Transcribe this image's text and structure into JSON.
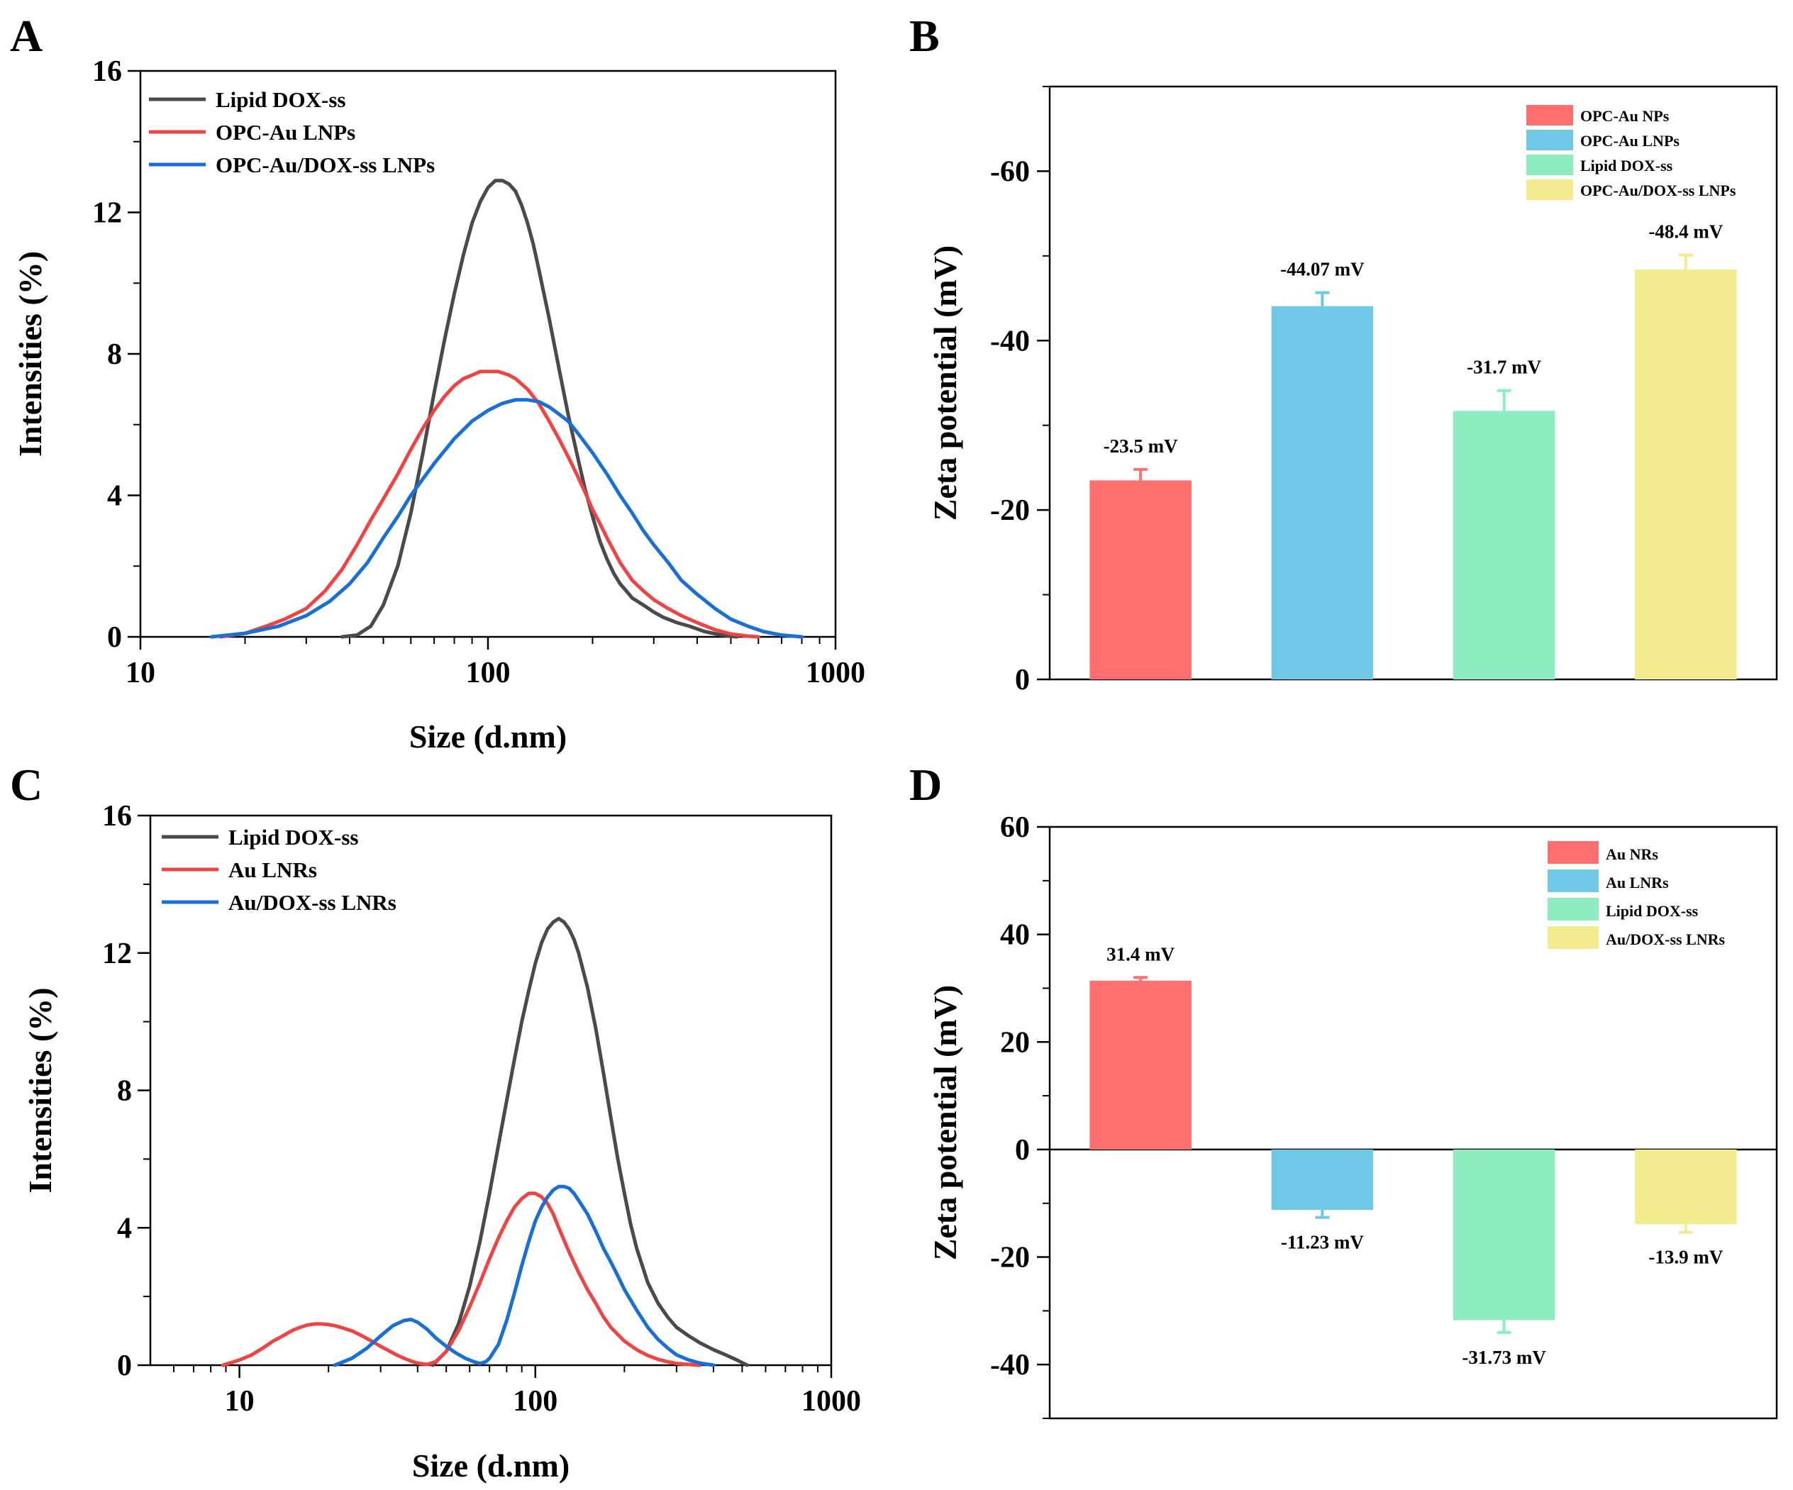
{
  "chart_data": [
    {
      "panel": "A",
      "type": "line",
      "xscale": "log",
      "xlabel": "Size (d.nm)",
      "ylabel": "Intensities (%)",
      "xlim": [
        10,
        1000
      ],
      "ylim": [
        0,
        16
      ],
      "xticks": [
        10,
        100,
        1000
      ],
      "xtick_labels": [
        "10",
        "100",
        "1000"
      ],
      "yticks": [
        0,
        4,
        8,
        12,
        16
      ],
      "ytick_labels": [
        "0",
        "4",
        "8",
        "12",
        "16"
      ],
      "legend_position": "top-left",
      "series": [
        {
          "name": "Lipid DOX-ss",
          "color": "#4a4a4a",
          "x": [
            38,
            42,
            46,
            50,
            55,
            60,
            65,
            70,
            75,
            80,
            85,
            90,
            95,
            100,
            105,
            110,
            115,
            120,
            125,
            130,
            135,
            140,
            150,
            160,
            170,
            180,
            190,
            200,
            210,
            220,
            230,
            240,
            250,
            260,
            280,
            300,
            320,
            350,
            380,
            420,
            470,
            520
          ],
          "y": [
            0,
            0.05,
            0.3,
            0.9,
            2.0,
            3.5,
            5.2,
            6.9,
            8.4,
            9.7,
            10.8,
            11.7,
            12.3,
            12.7,
            12.9,
            12.9,
            12.8,
            12.6,
            12.2,
            11.7,
            11.1,
            10.4,
            9.0,
            7.6,
            6.3,
            5.2,
            4.2,
            3.4,
            2.7,
            2.2,
            1.8,
            1.5,
            1.3,
            1.1,
            0.9,
            0.7,
            0.55,
            0.4,
            0.3,
            0.15,
            0.05,
            0
          ]
        },
        {
          "name": "OPC-Au LNPs",
          "color": "#ee4444",
          "x": [
            17,
            20,
            23,
            26,
            30,
            34,
            38,
            42,
            46,
            50,
            55,
            60,
            65,
            70,
            75,
            80,
            85,
            90,
            95,
            100,
            107,
            115,
            120,
            130,
            140,
            150,
            160,
            170,
            180,
            190,
            200,
            210,
            220,
            240,
            260,
            280,
            300,
            330,
            360,
            400,
            450,
            500,
            560,
            600
          ],
          "y": [
            0,
            0.1,
            0.3,
            0.5,
            0.8,
            1.3,
            1.9,
            2.6,
            3.3,
            3.9,
            4.6,
            5.3,
            5.9,
            6.4,
            6.8,
            7.1,
            7.3,
            7.4,
            7.5,
            7.5,
            7.5,
            7.4,
            7.3,
            7.0,
            6.6,
            6.1,
            5.6,
            5.1,
            4.6,
            4.1,
            3.6,
            3.2,
            2.8,
            2.1,
            1.6,
            1.3,
            1.05,
            0.8,
            0.6,
            0.4,
            0.2,
            0.08,
            0.02,
            0
          ]
        },
        {
          "name": "OPC-Au/DOX-ss LNPs",
          "color": "#1a6fd6",
          "x": [
            16,
            20,
            25,
            30,
            35,
            40,
            45,
            50,
            55,
            60,
            70,
            80,
            90,
            100,
            110,
            120,
            130,
            140,
            150,
            160,
            170,
            180,
            200,
            220,
            240,
            260,
            280,
            300,
            330,
            360,
            400,
            450,
            500,
            560,
            620,
            700,
            800
          ],
          "y": [
            0,
            0.1,
            0.3,
            0.6,
            1.0,
            1.5,
            2.1,
            2.8,
            3.4,
            4.0,
            4.9,
            5.6,
            6.1,
            6.4,
            6.6,
            6.7,
            6.7,
            6.65,
            6.5,
            6.3,
            6.1,
            5.8,
            5.2,
            4.6,
            4.0,
            3.5,
            3.0,
            2.6,
            2.1,
            1.6,
            1.2,
            0.8,
            0.5,
            0.3,
            0.15,
            0.05,
            0
          ]
        }
      ]
    },
    {
      "panel": "B",
      "type": "bar",
      "ylabel": "Zeta potential (mV)",
      "ylim": [
        0,
        -70
      ],
      "yticks": [
        0,
        -20,
        -40,
        -60
      ],
      "ytick_labels": [
        "0",
        "-20",
        "-40",
        "-60"
      ],
      "legend_position": "top-right",
      "categories": [
        "OPC-Au NPs",
        "OPC-Au LNPs",
        "Lipid DOX-ss",
        "OPC-Au/DOX-ss LNPs"
      ],
      "values": [
        -23.5,
        -44.07,
        -31.7,
        -48.4
      ],
      "errors": [
        1.3,
        1.6,
        2.4,
        1.7
      ],
      "colors": [
        "#ff6f6e",
        "#6ec8e6",
        "#8eecc1",
        "#f2ec8e"
      ],
      "value_labels": [
        "-23.5 mV",
        "-44.07 mV",
        "-31.7 mV",
        "-48.4 mV"
      ]
    },
    {
      "panel": "C",
      "type": "line",
      "xscale": "log",
      "xlabel": "Size (d.nm)",
      "ylabel": "Intensities (%)",
      "xlim": [
        5,
        1000
      ],
      "ylim": [
        0,
        16
      ],
      "xticks": [
        10,
        100,
        1000
      ],
      "xtick_labels": [
        "10",
        "100",
        "1000"
      ],
      "yticks": [
        0,
        4,
        8,
        12,
        16
      ],
      "ytick_labels": [
        "0",
        "4",
        "8",
        "12",
        "16"
      ],
      "legend_position": "top-left",
      "series": [
        {
          "name": "Lipid DOX-ss",
          "color": "#4a4a4a",
          "x": [
            45,
            50,
            55,
            60,
            65,
            70,
            75,
            80,
            85,
            90,
            95,
            100,
            105,
            110,
            115,
            120,
            125,
            130,
            135,
            140,
            150,
            160,
            170,
            180,
            190,
            200,
            210,
            220,
            240,
            260,
            280,
            300,
            330,
            360,
            400,
            440,
            480,
            520
          ],
          "y": [
            0,
            0.4,
            1.2,
            2.3,
            3.6,
            5.0,
            6.4,
            7.7,
            8.9,
            10.0,
            10.9,
            11.7,
            12.3,
            12.7,
            12.9,
            13.0,
            12.9,
            12.7,
            12.4,
            12.0,
            11.0,
            9.8,
            8.5,
            7.2,
            6.0,
            5.0,
            4.1,
            3.4,
            2.4,
            1.8,
            1.4,
            1.1,
            0.85,
            0.65,
            0.45,
            0.3,
            0.15,
            0
          ]
        },
        {
          "name": "Au LNRs",
          "color": "#ee4444",
          "x": [
            8.8,
            10,
            11,
            12,
            13,
            14,
            15,
            16,
            17,
            18,
            19,
            20,
            21,
            22,
            24,
            26,
            28,
            30,
            32,
            34,
            36,
            38,
            40,
            43,
            46,
            50,
            55,
            60,
            65,
            70,
            75,
            80,
            85,
            90,
            95,
            100,
            105,
            110,
            115,
            120,
            130,
            140,
            150,
            160,
            170,
            180,
            200,
            220,
            240,
            260,
            280,
            300,
            330,
            360
          ],
          "y": [
            0,
            0.15,
            0.3,
            0.5,
            0.7,
            0.85,
            1.0,
            1.1,
            1.17,
            1.2,
            1.2,
            1.18,
            1.15,
            1.1,
            1.0,
            0.85,
            0.7,
            0.55,
            0.42,
            0.3,
            0.2,
            0.12,
            0.06,
            0.02,
            0.1,
            0.4,
            1.0,
            1.7,
            2.4,
            3.1,
            3.7,
            4.2,
            4.6,
            4.85,
            5.0,
            5.0,
            4.9,
            4.7,
            4.4,
            4.0,
            3.3,
            2.7,
            2.2,
            1.8,
            1.4,
            1.1,
            0.7,
            0.45,
            0.28,
            0.17,
            0.1,
            0.05,
            0.02,
            0
          ]
        },
        {
          "name": "Au/DOX-ss LNRs",
          "color": "#1a6fd6",
          "x": [
            21,
            24,
            27,
            30,
            33,
            36,
            38,
            40,
            43,
            46,
            50,
            54,
            58,
            62,
            65,
            68,
            70,
            75,
            80,
            85,
            90,
            95,
            100,
            105,
            110,
            115,
            120,
            125,
            130,
            135,
            140,
            150,
            160,
            170,
            180,
            190,
            200,
            220,
            240,
            260,
            280,
            300,
            330,
            360,
            400
          ],
          "y": [
            0,
            0.2,
            0.5,
            0.85,
            1.15,
            1.3,
            1.33,
            1.25,
            1.05,
            0.8,
            0.55,
            0.35,
            0.2,
            0.1,
            0.05,
            0.1,
            0.2,
            0.6,
            1.3,
            2.1,
            2.9,
            3.6,
            4.2,
            4.6,
            4.9,
            5.1,
            5.2,
            5.2,
            5.15,
            5.0,
            4.8,
            4.4,
            3.9,
            3.4,
            3.0,
            2.6,
            2.2,
            1.6,
            1.1,
            0.75,
            0.5,
            0.3,
            0.15,
            0.06,
            0
          ]
        }
      ]
    },
    {
      "panel": "D",
      "type": "bar",
      "ylabel": "Zeta potential (mV)",
      "ylim": [
        -50,
        60
      ],
      "yticks": [
        -40,
        -20,
        0,
        20,
        40,
        60
      ],
      "ytick_labels": [
        "-40",
        "-20",
        "0",
        "20",
        "40",
        "60"
      ],
      "legend_position": "top-right",
      "categories": [
        "Au NRs",
        "Au LNRs",
        "Lipid DOX-ss",
        "Au/DOX-ss LNRs"
      ],
      "values": [
        31.4,
        -11.23,
        -31.73,
        -13.9
      ],
      "errors": [
        0.6,
        1.4,
        2.3,
        1.5
      ],
      "colors": [
        "#ff6f6e",
        "#6ec8e6",
        "#8eecc1",
        "#f2ec8e"
      ],
      "value_labels": [
        "31.4 mV",
        "-11.23 mV",
        "-31.73 mV",
        "-13.9 mV"
      ]
    }
  ],
  "panels": {
    "A": {
      "letter": "A"
    },
    "B": {
      "letter": "B"
    },
    "C": {
      "letter": "C"
    },
    "D": {
      "letter": "D"
    }
  }
}
